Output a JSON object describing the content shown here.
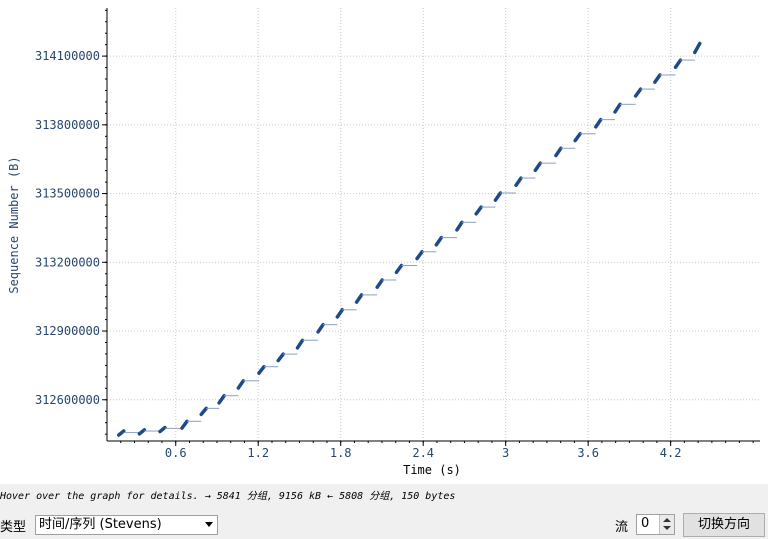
{
  "chart_data": {
    "type": "scatter",
    "title": "",
    "xlabel": "Time (s)",
    "ylabel": "Sequence Number (B)",
    "xlim": [
      0.1,
      4.85
    ],
    "ylim": [
      312420000,
      314310000
    ],
    "x_ticks": [
      "0.6",
      "1.2",
      "1.8",
      "2.4",
      "3",
      "3.6",
      "4.2"
    ],
    "x_tick_values": [
      0.6,
      1.2,
      1.8,
      2.4,
      3.0,
      3.6,
      4.2
    ],
    "y_ticks": [
      "312600000",
      "312900000",
      "313200000",
      "313500000",
      "313800000",
      "314100000"
    ],
    "y_tick_values": [
      312600000,
      312900000,
      313200000,
      313500000,
      313800000,
      314100000
    ],
    "grid": true,
    "series_color": "#1f4a8a",
    "points": [
      [
        0.2,
        312455000
      ],
      [
        0.35,
        312460000
      ],
      [
        0.5,
        312470000
      ],
      [
        0.66,
        312485000
      ],
      [
        0.8,
        312545000
      ],
      [
        0.93,
        312595000
      ],
      [
        1.07,
        312660000
      ],
      [
        1.22,
        312725000
      ],
      [
        1.36,
        312780000
      ],
      [
        1.5,
        312835000
      ],
      [
        1.65,
        312905000
      ],
      [
        1.79,
        312970000
      ],
      [
        1.93,
        313035000
      ],
      [
        2.08,
        313100000
      ],
      [
        2.22,
        313165000
      ],
      [
        2.37,
        313225000
      ],
      [
        2.51,
        313285000
      ],
      [
        2.66,
        313350000
      ],
      [
        2.8,
        313420000
      ],
      [
        2.94,
        313480000
      ],
      [
        3.09,
        313545000
      ],
      [
        3.23,
        313610000
      ],
      [
        3.38,
        313675000
      ],
      [
        3.52,
        313740000
      ],
      [
        3.67,
        313800000
      ],
      [
        3.81,
        313865000
      ],
      [
        3.96,
        313935000
      ],
      [
        4.1,
        313995000
      ],
      [
        4.25,
        314060000
      ],
      [
        4.39,
        314125000
      ]
    ]
  },
  "status_bar": {
    "hover_text": "Hover over the graph for details. → 5841 分组, 9156 kB ← 5808 分组, 150 bytes"
  },
  "controls": {
    "type_label": "类型",
    "type_selected": "时间/序列 (Stevens)",
    "stream_label": "流",
    "stream_value": "0",
    "switch_button_label": "切换方向"
  }
}
